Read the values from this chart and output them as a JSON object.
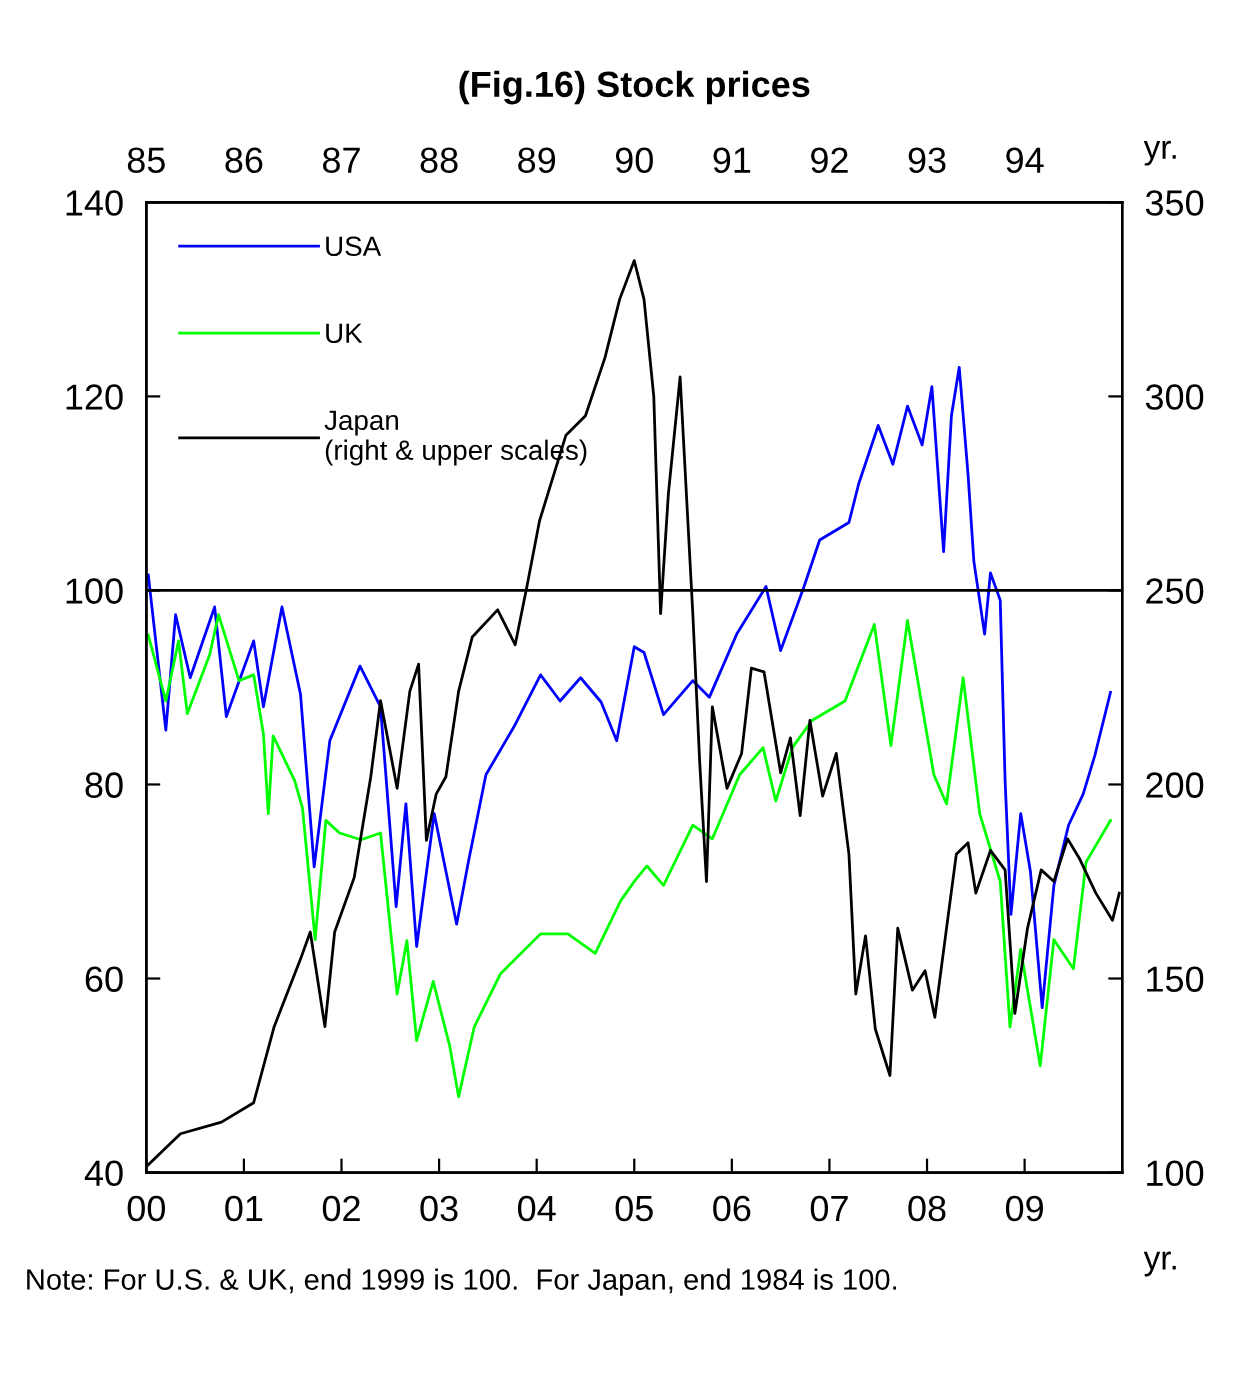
{
  "chart_data": {
    "type": "line",
    "title": "(Fig.16) Stock prices",
    "xlabel": "yr.",
    "x2label": "yr.",
    "xlim": [
      0,
      10
    ],
    "xticks": [
      {
        "value": 0,
        "label": "00"
      },
      {
        "value": 1,
        "label": "01"
      },
      {
        "value": 2,
        "label": "02"
      },
      {
        "value": 3,
        "label": "03"
      },
      {
        "value": 4,
        "label": "04"
      },
      {
        "value": 5,
        "label": "05"
      },
      {
        "value": 6,
        "label": "06"
      },
      {
        "value": 7,
        "label": "07"
      },
      {
        "value": 8,
        "label": "08"
      },
      {
        "value": 9,
        "label": "09"
      }
    ],
    "x2lim": [
      85,
      95
    ],
    "x2ticks": [
      85,
      86,
      87,
      88,
      89,
      90,
      91,
      92,
      93,
      94
    ],
    "ylim": [
      40,
      140
    ],
    "yticks": [
      40,
      60,
      80,
      100,
      120,
      140
    ],
    "y2lim": [
      100,
      350
    ],
    "y2ticks": [
      100,
      150,
      200,
      250,
      300,
      350
    ],
    "ref_lines": [
      {
        "axis": "y",
        "value": 100,
        "color": "#000000"
      }
    ],
    "legend": "top left",
    "annotations": [
      "Note: For U.S. & UK, end 1999 is 100.  For Japan, end 1984 is 100."
    ],
    "series": [
      {
        "name": "USA",
        "color": "#0000ff",
        "x": [
          0.02,
          0.2,
          0.3,
          0.45,
          0.7,
          0.82,
          1.1,
          1.2,
          1.39,
          1.58,
          1.72,
          1.88,
          2.19,
          2.4,
          2.56,
          2.66,
          2.77,
          2.95,
          3.18,
          3.3,
          3.48,
          3.77,
          4.04,
          4.24,
          4.45,
          4.66,
          4.82,
          5.0,
          5.1,
          5.3,
          5.6,
          5.77,
          6.05,
          6.35,
          6.5,
          6.74,
          6.9,
          7.2,
          7.3,
          7.5,
          7.65,
          7.8,
          7.95,
          8.05,
          8.17,
          8.25,
          8.33,
          8.42,
          8.48,
          8.59,
          8.65,
          8.75,
          8.8,
          8.86,
          8.96,
          9.06,
          9.18,
          9.3,
          9.45,
          9.6,
          9.72,
          9.88
        ],
        "values": [
          101.6,
          85.6,
          97.5,
          91,
          98.3,
          87,
          94.8,
          88,
          98.3,
          89.3,
          71.5,
          84.5,
          92.2,
          88,
          67.4,
          78,
          63.3,
          77,
          65.6,
          72,
          81,
          86,
          91.3,
          88.6,
          91,
          88.5,
          84.5,
          94.2,
          93.6,
          87.2,
          90.7,
          89,
          95.5,
          100.4,
          93.8,
          100.4,
          105.2,
          107,
          111,
          117,
          113,
          119,
          115,
          121,
          104,
          118,
          123,
          112,
          103,
          95.5,
          101.8,
          99,
          80.4,
          66.6,
          77,
          71,
          57,
          69.6,
          75.8,
          79,
          83,
          89.5
        ]
      },
      {
        "name": "UK",
        "color": "#00ff00",
        "x": [
          0.02,
          0.2,
          0.33,
          0.42,
          0.65,
          0.74,
          0.95,
          1.1,
          1.2,
          1.25,
          1.3,
          1.52,
          1.6,
          1.73,
          1.84,
          1.98,
          2.2,
          2.4,
          2.57,
          2.67,
          2.77,
          2.94,
          3.11,
          3.2,
          3.36,
          3.63,
          4.04,
          4.32,
          4.6,
          4.86,
          5.0,
          5.13,
          5.3,
          5.6,
          5.8,
          6.08,
          6.32,
          6.45,
          6.62,
          6.82,
          7.16,
          7.46,
          7.63,
          7.8,
          8.07,
          8.2,
          8.37,
          8.54,
          8.75,
          8.85,
          8.96,
          9.16,
          9.3,
          9.5,
          9.63,
          9.88
        ],
        "values": [
          95.4,
          88.6,
          94.8,
          87.3,
          93.4,
          97.5,
          90.7,
          91.3,
          85.2,
          77,
          85,
          80.4,
          77.6,
          64,
          76.3,
          75,
          74.3,
          75,
          58.4,
          63.9,
          53.6,
          59.7,
          53,
          47.8,
          55,
          60.5,
          64.6,
          64.6,
          62.6,
          68,
          70,
          71.6,
          69.6,
          75.8,
          74.4,
          81,
          83.8,
          78.3,
          83.8,
          86.6,
          88.6,
          96.5,
          84,
          96.9,
          81,
          78,
          91,
          77,
          70,
          55,
          63,
          51,
          64,
          61,
          72,
          76.3
        ]
      },
      {
        "name": "Japan\n(right & upper scales)",
        "color": "#000000",
        "axis": "y2",
        "x": [
          0.02,
          0.35,
          0.77,
          1.1,
          1.31,
          1.58,
          1.68,
          1.83,
          1.93,
          2.13,
          2.3,
          2.4,
          2.57,
          2.7,
          2.79,
          2.87,
          2.97,
          3.07,
          3.2,
          3.34,
          3.6,
          3.78,
          3.9,
          4.03,
          4.3,
          4.5,
          4.7,
          4.85,
          5.0,
          5.1,
          5.2,
          5.27,
          5.35,
          5.47,
          5.6,
          5.67,
          5.74,
          5.8,
          5.95,
          6.1,
          6.2,
          6.33,
          6.5,
          6.6,
          6.7,
          6.8,
          6.93,
          7.07,
          7.2,
          7.27,
          7.37,
          7.47,
          7.62,
          7.7,
          7.85,
          7.98,
          8.08,
          8.2,
          8.3,
          8.42,
          8.5,
          8.65,
          8.8,
          8.9,
          9.03,
          9.17,
          9.3,
          9.44,
          9.56,
          9.73,
          9.9,
          9.97
        ],
        "values": [
          102,
          110,
          113,
          118,
          137.6,
          155,
          162,
          137.6,
          162,
          176,
          202,
          221.6,
          199,
          224,
          231,
          185.6,
          197.5,
          202,
          224,
          238,
          245,
          236,
          251,
          268,
          290,
          295,
          310,
          325,
          335,
          325,
          300,
          244,
          275,
          305,
          244,
          206,
          175,
          220,
          199,
          208,
          230,
          229,
          203,
          212,
          192,
          216.5,
          197,
          208,
          182,
          146,
          161,
          137,
          125,
          163,
          147,
          152,
          140,
          163,
          182,
          185,
          172,
          183,
          178,
          141,
          163,
          178,
          175,
          186,
          181,
          172,
          165,
          172
        ]
      }
    ]
  }
}
